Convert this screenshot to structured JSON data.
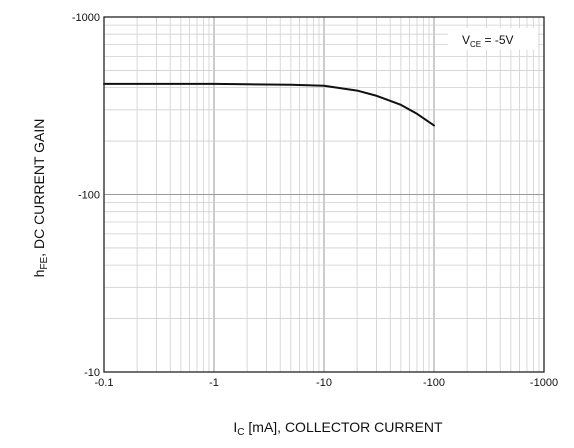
{
  "chart_data": {
    "type": "line",
    "title": "",
    "xscale": "log",
    "yscale": "log",
    "xlim": [
      -0.1,
      -1000
    ],
    "ylim": [
      -10,
      -1000
    ],
    "x_ticks": [
      -0.1,
      -1,
      -10,
      -100,
      -1000
    ],
    "y_ticks": [
      -10,
      -100,
      -1000
    ],
    "x_tick_labels": [
      "-0.1",
      "-1",
      "-10",
      "-100",
      "-1000"
    ],
    "y_tick_labels": [
      "-10",
      "-100",
      "-1000"
    ],
    "xlabel_main": "I",
    "xlabel_sub": "C",
    "xlabel_rest": " [mA], COLLECTOR CURRENT",
    "ylabel_main": "h",
    "ylabel_sub": "FE",
    "ylabel_rest": ", DC CURRENT GAIN",
    "annotation": {
      "prefix": "V",
      "sub": "CE",
      "rest": " = -5V"
    },
    "grid": true,
    "colors": {
      "line": "#111111",
      "grid_major": "#9a9a9a",
      "grid_minor": "#cfcfcf",
      "frame": "#222222"
    },
    "series": [
      {
        "x": [
          -0.1,
          -0.2,
          -0.5,
          -1,
          -2,
          -5,
          -10,
          -20,
          -30,
          -50,
          -70,
          -100
        ],
        "y": [
          -420,
          -420,
          -420,
          -420,
          -418,
          -415,
          -410,
          -385,
          -360,
          -320,
          -285,
          -245
        ]
      }
    ]
  }
}
